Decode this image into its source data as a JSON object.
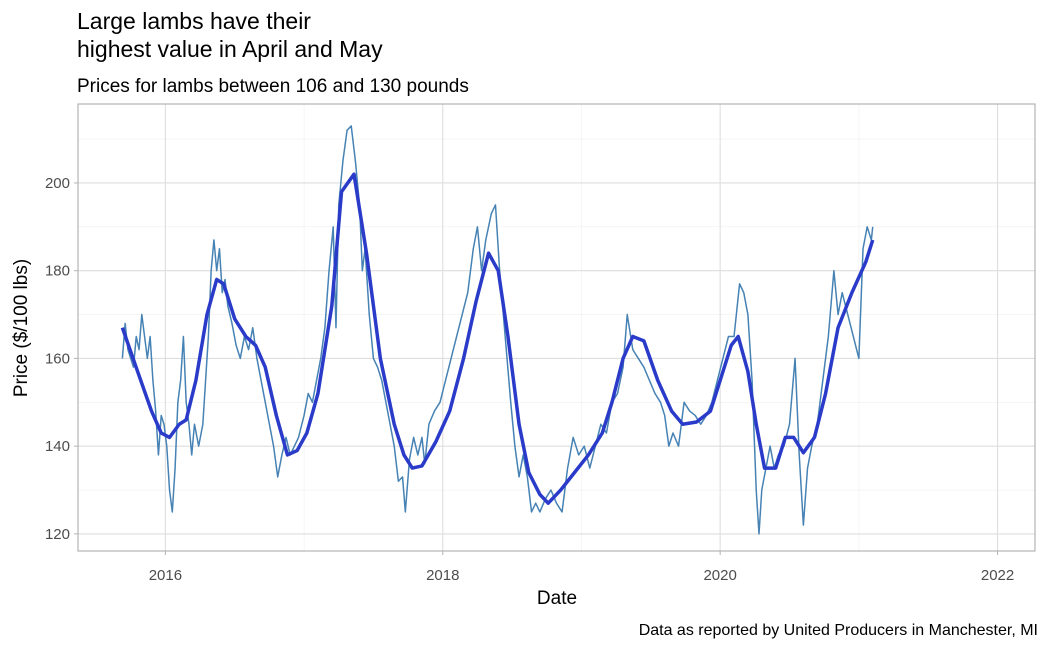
{
  "chart_data": {
    "type": "line",
    "title": [
      "Large lambs have their",
      "highest value in April and May"
    ],
    "subtitle": "Prices for lambs between 106 and 130 pounds",
    "x_label": "Date",
    "y_label": "Price ($/100 lbs)",
    "caption": "Data as reported by United Producers in Manchester, MI",
    "xlim": [
      2015.37,
      2022.27
    ],
    "ylim": [
      116.1,
      218.0
    ],
    "xticks": [
      2016,
      2018,
      2020,
      2022
    ],
    "yticks": [
      120,
      140,
      160,
      180,
      200
    ],
    "xminor_ticks": [
      2017,
      2019,
      2021
    ],
    "yminor_ticks": [
      130,
      150,
      170,
      190,
      210
    ],
    "grid": true,
    "series": [
      {
        "color": "#4682b4",
        "width": 1.5,
        "x": [
          2015.69,
          2015.71,
          2015.73,
          2015.75,
          2015.77,
          2015.79,
          2015.81,
          2015.83,
          2015.85,
          2015.87,
          2015.89,
          2015.91,
          2015.93,
          2015.95,
          2015.97,
          2015.99,
          2016.01,
          2016.03,
          2016.05,
          2016.07,
          2016.09,
          2016.11,
          2016.13,
          2016.15,
          2016.17,
          2016.19,
          2016.21,
          2016.24,
          2016.27,
          2016.29,
          2016.31,
          2016.33,
          2016.35,
          2016.37,
          2016.39,
          2016.41,
          2016.43,
          2016.45,
          2016.48,
          2016.51,
          2016.54,
          2016.57,
          2016.6,
          2016.63,
          2016.66,
          2016.69,
          2016.72,
          2016.75,
          2016.78,
          2016.81,
          2016.84,
          2016.87,
          2016.9,
          2016.93,
          2016.96,
          2017.0,
          2017.03,
          2017.06,
          2017.09,
          2017.12,
          2017.15,
          2017.18,
          2017.21,
          2017.23,
          2017.25,
          2017.28,
          2017.31,
          2017.34,
          2017.37,
          2017.4,
          2017.42,
          2017.44,
          2017.47,
          2017.5,
          2017.53,
          2017.56,
          2017.59,
          2017.62,
          2017.65,
          2017.68,
          2017.71,
          2017.73,
          2017.76,
          2017.79,
          2017.82,
          2017.85,
          2017.87,
          2017.9,
          2017.94,
          2017.98,
          2018.02,
          2018.06,
          2018.1,
          2018.14,
          2018.18,
          2018.22,
          2018.25,
          2018.28,
          2018.31,
          2018.35,
          2018.38,
          2018.41,
          2018.45,
          2018.49,
          2018.52,
          2018.55,
          2018.58,
          2018.61,
          2018.64,
          2018.67,
          2018.7,
          2018.74,
          2018.78,
          2018.82,
          2018.86,
          2018.9,
          2018.94,
          2018.98,
          2019.02,
          2019.06,
          2019.1,
          2019.14,
          2019.18,
          2019.22,
          2019.26,
          2019.3,
          2019.33,
          2019.37,
          2019.41,
          2019.45,
          2019.49,
          2019.53,
          2019.57,
          2019.6,
          2019.63,
          2019.66,
          2019.7,
          2019.74,
          2019.78,
          2019.82,
          2019.86,
          2019.9,
          2019.94,
          2019.98,
          2020.02,
          2020.06,
          2020.1,
          2020.14,
          2020.17,
          2020.2,
          2020.23,
          2020.26,
          2020.28,
          2020.3,
          2020.33,
          2020.36,
          2020.39,
          2020.42,
          2020.46,
          2020.5,
          2020.54,
          2020.57,
          2020.6,
          2020.63,
          2020.66,
          2020.7,
          2020.74,
          2020.78,
          2020.82,
          2020.85,
          2020.88,
          2020.92,
          2020.96,
          2021.0,
          2021.03,
          2021.06,
          2021.09,
          2021.1
        ],
        "values": [
          160,
          168,
          162,
          160,
          158,
          165,
          162,
          170,
          165,
          160,
          165,
          155,
          148,
          138,
          147,
          145,
          140,
          130,
          125,
          135,
          150,
          155,
          165,
          150,
          145,
          138,
          145,
          140,
          145,
          155,
          165,
          180,
          187,
          180,
          185,
          175,
          178,
          172,
          168,
          163,
          160,
          165,
          162,
          167,
          160,
          155,
          150,
          145,
          140,
          133,
          138,
          142,
          138,
          140,
          142,
          147,
          152,
          150,
          155,
          160,
          167,
          180,
          190,
          167,
          195,
          205,
          212,
          213,
          205,
          195,
          180,
          185,
          170,
          160,
          158,
          155,
          150,
          145,
          140,
          132,
          133,
          125,
          137,
          142,
          138,
          142,
          136,
          145,
          148,
          150,
          155,
          160,
          165,
          170,
          175,
          185,
          190,
          180,
          187,
          193,
          195,
          180,
          165,
          150,
          140,
          133,
          138,
          133,
          125,
          127,
          125,
          128,
          130,
          127,
          125,
          135,
          142,
          138,
          140,
          135,
          140,
          145,
          143,
          150,
          152,
          158,
          170,
          162,
          160,
          158,
          155,
          152,
          150,
          147,
          140,
          143,
          140,
          150,
          148,
          147,
          145,
          147,
          150,
          155,
          160,
          165,
          165,
          177,
          175,
          170,
          155,
          130,
          120,
          130,
          135,
          140,
          135,
          138,
          140,
          145,
          160,
          138,
          122,
          135,
          140,
          145,
          155,
          165,
          180,
          170,
          175,
          170,
          165,
          160,
          185,
          190,
          187,
          190
        ]
      },
      {
        "color": "#2b3bc9",
        "width": 3.5,
        "x": [
          2015.69,
          2015.8,
          2015.9,
          2015.97,
          2016.03,
          2016.1,
          2016.15,
          2016.22,
          2016.3,
          2016.37,
          2016.42,
          2016.5,
          2016.58,
          2016.65,
          2016.72,
          2016.8,
          2016.88,
          2016.95,
          2017.02,
          2017.1,
          2017.2,
          2017.27,
          2017.36,
          2017.45,
          2017.55,
          2017.65,
          2017.72,
          2017.78,
          2017.85,
          2017.95,
          2018.05,
          2018.15,
          2018.24,
          2018.33,
          2018.4,
          2018.47,
          2018.55,
          2018.62,
          2018.7,
          2018.76,
          2018.85,
          2018.95,
          2019.05,
          2019.15,
          2019.22,
          2019.3,
          2019.37,
          2019.45,
          2019.55,
          2019.65,
          2019.73,
          2019.83,
          2019.93,
          2020.0,
          2020.08,
          2020.13,
          2020.2,
          2020.26,
          2020.32,
          2020.4,
          2020.47,
          2020.53,
          2020.6,
          2020.68,
          2020.76,
          2020.85,
          2020.95,
          2021.05,
          2021.1
        ],
        "values": [
          167,
          157,
          148,
          143,
          142,
          145,
          146,
          155,
          170,
          178,
          177,
          169,
          165,
          163,
          158,
          147,
          138,
          139,
          143,
          152,
          172,
          198,
          202,
          184,
          160,
          145,
          138,
          135,
          135.5,
          141,
          148,
          160,
          173,
          184,
          180,
          165,
          145,
          134,
          129,
          127,
          130,
          134,
          138,
          143,
          150,
          160,
          165,
          164,
          155,
          148,
          145,
          145.5,
          148,
          155,
          163,
          165,
          157,
          145,
          135,
          135,
          142,
          142,
          138.5,
          142,
          152,
          167,
          175,
          182,
          187
        ]
      }
    ]
  }
}
